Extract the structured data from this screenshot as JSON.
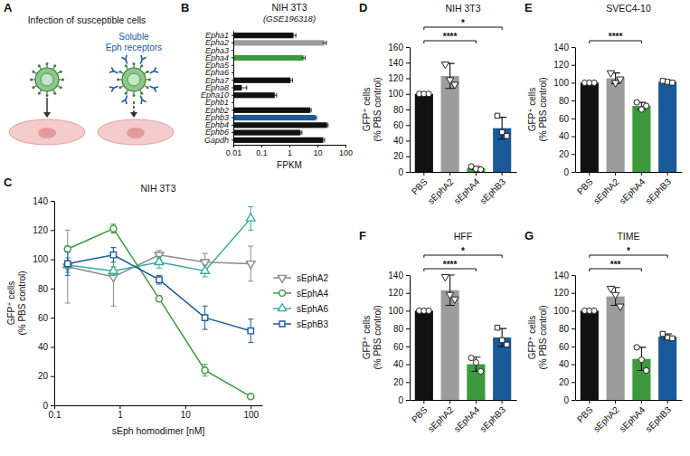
{
  "diagram": {
    "panel": "A",
    "title": "Infection of susceptible cells",
    "label": "Soluble Eph receptors"
  },
  "chart_data": [
    {
      "panel": "B",
      "type": "bar",
      "orientation": "horizontal",
      "title": "NIH 3T3",
      "subtitle": "(GSE196318)",
      "xlabel": "FPKM",
      "log": "x",
      "xlim": [
        0.01,
        100
      ],
      "xticks": [
        0.01,
        0.1,
        1,
        10,
        100
      ],
      "categories": [
        "Epha1",
        "Epha2",
        "Epha3",
        "Epha4",
        "Epha5",
        "Epha6",
        "Epha7",
        "Epha8",
        "Epha10",
        "Ephb1",
        "Ephb2",
        "Ephb3",
        "Ephb4",
        "Ephb6",
        "Gapdh"
      ],
      "values": [
        1.4,
        18,
        null,
        3.2,
        null,
        null,
        1.1,
        0.02,
        0.3,
        null,
        5.5,
        8.5,
        22,
        2.5,
        16
      ],
      "errors": [
        0.3,
        3,
        null,
        0.5,
        null,
        null,
        0.2,
        0.01,
        0.05,
        null,
        0.5,
        0.8,
        2,
        0.3,
        2
      ],
      "colors": [
        "#111111",
        "#9c9c9c",
        "#111111",
        "#3c9a3c",
        "#111111",
        "#111111",
        "#111111",
        "#111111",
        "#111111",
        "#111111",
        "#111111",
        "#1a5a9a",
        "#111111",
        "#111111",
        "#111111"
      ]
    },
    {
      "panel": "C",
      "type": "line",
      "title": "NIH 3T3",
      "xlabel": "sEph homodimer [nM]",
      "ylabel": "GFP⁺ cells (% PBS control)",
      "log": "x",
      "xlim": [
        0.1,
        150
      ],
      "xticks": [
        0.1,
        1,
        10,
        100
      ],
      "ylim": [
        0,
        140
      ],
      "yticks": [
        0,
        20,
        40,
        60,
        80,
        100,
        120,
        140
      ],
      "legend": "right",
      "x": [
        0.16,
        0.8,
        4,
        20,
        100
      ],
      "series": [
        {
          "name": "sEphA2",
          "color": "#8a8a8a",
          "marker": "triangle-down",
          "values": [
            95,
            88,
            103,
            98,
            97
          ],
          "errors": [
            25,
            20,
            3,
            6,
            12
          ]
        },
        {
          "name": "sEphA4",
          "color": "#3c9a3c",
          "marker": "circle",
          "values": [
            107,
            121,
            73,
            24,
            6
          ],
          "errors": [
            2,
            3,
            2,
            4,
            1
          ]
        },
        {
          "name": "sEphA6",
          "color": "#3aa9a3",
          "marker": "triangle-up",
          "values": [
            96,
            92,
            98,
            92,
            128
          ],
          "errors": [
            5,
            3,
            4,
            4,
            8
          ]
        },
        {
          "name": "sEphB3",
          "color": "#1a5a9a",
          "marker": "square",
          "values": [
            97,
            103,
            86,
            60,
            51
          ],
          "errors": [
            8,
            5,
            3,
            8,
            8
          ]
        }
      ]
    },
    {
      "panel": "D",
      "type": "bar",
      "title": "NIH 3T3",
      "ylabel": "GFP⁺ cells (% PBS control)",
      "ylim": [
        0,
        160
      ],
      "yticks": [
        0,
        20,
        40,
        60,
        80,
        100,
        120,
        140,
        160
      ],
      "categories": [
        "PBS",
        "sEphA2",
        "sEphA4",
        "sEphB3"
      ],
      "values": [
        100,
        123,
        5,
        56
      ],
      "errors": [
        0,
        16,
        2,
        14
      ],
      "points": [
        [
          100,
          100,
          100
        ],
        [
          138,
          118,
          112
        ],
        [
          7,
          4,
          3
        ],
        [
          72,
          51,
          46
        ]
      ],
      "colors": [
        "#111111",
        "#9c9c9c",
        "#3c9a3c",
        "#1a5a9a"
      ],
      "annotations": [
        {
          "text": "****",
          "from": 0,
          "to": 2
        },
        {
          "text": "*",
          "from": 0,
          "to": 3
        }
      ]
    },
    {
      "panel": "E",
      "type": "bar",
      "title": "SVEC4-10",
      "ylabel": "GFP⁺ cells (% PBS control)",
      "ylim": [
        0,
        140
      ],
      "yticks": [
        0,
        20,
        40,
        60,
        80,
        100,
        120,
        140
      ],
      "categories": [
        "PBS",
        "sEphA2",
        "sEphA4",
        "sEphB3"
      ],
      "values": [
        100,
        105,
        74,
        101
      ],
      "errors": [
        0,
        6,
        4,
        1.5
      ],
      "points": [
        [
          100,
          100,
          100
        ],
        [
          111,
          100,
          104
        ],
        [
          78,
          70,
          74
        ],
        [
          102,
          101,
          100
        ]
      ],
      "colors": [
        "#111111",
        "#9c9c9c",
        "#3c9a3c",
        "#1a5a9a"
      ],
      "annotations": [
        {
          "text": "****",
          "from": 0,
          "to": 2
        }
      ]
    },
    {
      "panel": "F",
      "type": "bar",
      "title": "HFF",
      "ylabel": "GFP⁺ cells (% PBS control)",
      "ylim": [
        0,
        140
      ],
      "yticks": [
        0,
        20,
        40,
        60,
        80,
        100,
        120,
        140
      ],
      "categories": [
        "PBS",
        "sEphA2",
        "sEphA4",
        "sEphB3"
      ],
      "values": [
        100,
        123,
        40,
        70
      ],
      "errors": [
        0,
        17,
        8,
        10
      ],
      "points": [
        [
          100,
          100,
          100
        ],
        [
          138,
          118,
          113
        ],
        [
          47,
          42,
          32
        ],
        [
          81,
          67,
          62
        ]
      ],
      "colors": [
        "#111111",
        "#9c9c9c",
        "#3c9a3c",
        "#1a5a9a"
      ],
      "annotations": [
        {
          "text": "****",
          "from": 0,
          "to": 2
        },
        {
          "text": "*",
          "from": 0,
          "to": 3
        }
      ]
    },
    {
      "panel": "G",
      "type": "bar",
      "title": "TIME",
      "ylabel": "GFP⁺ cells (% PBS control)",
      "ylim": [
        0,
        140
      ],
      "yticks": [
        0,
        20,
        40,
        60,
        80,
        100,
        120,
        140
      ],
      "categories": [
        "PBS",
        "sEphA2",
        "sEphA4",
        "sEphB3"
      ],
      "values": [
        100,
        116,
        46,
        71
      ],
      "errors": [
        0,
        10,
        13,
        3
      ],
      "points": [
        [
          100,
          100,
          100
        ],
        [
          125,
          118,
          105
        ],
        [
          59,
          45,
          33
        ],
        [
          74,
          70,
          69
        ]
      ],
      "colors": [
        "#111111",
        "#9c9c9c",
        "#3c9a3c",
        "#1a5a9a"
      ],
      "annotations": [
        {
          "text": "***",
          "from": 0,
          "to": 2
        },
        {
          "text": "*",
          "from": 0,
          "to": 3
        }
      ]
    }
  ]
}
